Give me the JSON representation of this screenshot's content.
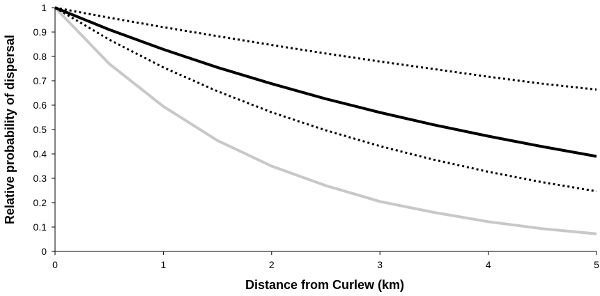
{
  "chart_data": {
    "type": "line",
    "title": "",
    "xlabel": "Distance from Curlew (km)",
    "ylabel": "Relative probability of dispersal",
    "xlim": [
      0,
      5
    ],
    "ylim": [
      0,
      1
    ],
    "xticks": [
      "0",
      "1",
      "2",
      "3",
      "4",
      "5"
    ],
    "yticks": [
      "0",
      "0.1",
      "0.2",
      "0.3",
      "0.4",
      "0.5",
      "0.6",
      "0.7",
      "0.8",
      "0.9",
      "1"
    ],
    "grid": false,
    "legend": "none",
    "series": [
      {
        "style": "solid",
        "color": "#c8c8c8",
        "x": [
          0,
          0.5,
          1,
          1.5,
          2,
          2.5,
          3,
          3.5,
          4,
          4.5,
          5
        ],
        "values": [
          1.0,
          0.77,
          0.595,
          0.455,
          0.35,
          0.27,
          0.205,
          0.16,
          0.122,
          0.093,
          0.072
        ]
      },
      {
        "style": "dotted",
        "color": "#000000",
        "x": [
          0,
          0.5,
          1,
          1.5,
          2,
          2.5,
          3,
          3.5,
          4,
          4.5,
          5
        ],
        "values": [
          1.0,
          0.869,
          0.755,
          0.657,
          0.571,
          0.497,
          0.432,
          0.376,
          0.327,
          0.284,
          0.247
        ]
      },
      {
        "style": "solid",
        "color": "#000000",
        "x": [
          0,
          0.5,
          1,
          1.5,
          2,
          2.5,
          3,
          3.5,
          4,
          4.5,
          5
        ],
        "values": [
          1.0,
          0.91,
          0.829,
          0.755,
          0.688,
          0.626,
          0.57,
          0.519,
          0.473,
          0.43,
          0.39
        ]
      },
      {
        "style": "dotted",
        "color": "#000000",
        "x": [
          0,
          0.5,
          1,
          1.5,
          2,
          2.5,
          3,
          3.5,
          4,
          4.5,
          5
        ],
        "values": [
          1.0,
          0.959,
          0.92,
          0.883,
          0.847,
          0.812,
          0.779,
          0.748,
          0.717,
          0.688,
          0.664
        ]
      }
    ]
  }
}
